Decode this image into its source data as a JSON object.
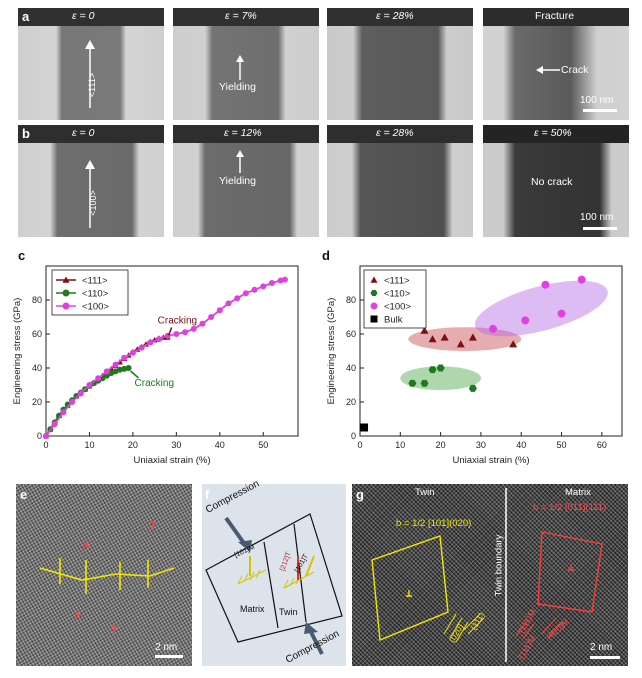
{
  "panel_a": {
    "label": "a",
    "frames": [
      {
        "strain_label": "ε = 0",
        "note": "<111>"
      },
      {
        "strain_label": "ε = 7%",
        "note": "Yielding"
      },
      {
        "strain_label": "ε = 28%",
        "note": ""
      },
      {
        "strain_label": "Fracture",
        "note": "Crack"
      }
    ],
    "scale_bar": "100 nm"
  },
  "panel_b": {
    "label": "b",
    "frames": [
      {
        "strain_label": "ε = 0",
        "note": "<100>"
      },
      {
        "strain_label": "ε = 12%",
        "note": "Yielding"
      },
      {
        "strain_label": "ε = 28%",
        "note": ""
      },
      {
        "strain_label": "ε = 50%",
        "note": "No crack"
      }
    ],
    "scale_bar": "100 nm"
  },
  "colors": {
    "s111": "#7b1113",
    "s110": "#1f7a1f",
    "s100": "#e040e0",
    "bulk": "#000000"
  },
  "chart_data": [
    {
      "panel": "c",
      "type": "line",
      "xlabel": "Uniaxial strain (%)",
      "ylabel": "Engineering stress (GPa)",
      "xlim": [
        0,
        58
      ],
      "ylim": [
        0,
        100
      ],
      "xticks": [
        0,
        10,
        20,
        30,
        40,
        50
      ],
      "yticks": [
        0,
        20,
        40,
        60,
        80
      ],
      "legend_position": "top-left",
      "annotations": [
        {
          "text": "Cracking",
          "series": "<111>"
        },
        {
          "text": "Cracking",
          "series": "<110>"
        }
      ],
      "series": [
        {
          "name": "<111>",
          "marker": "triangle",
          "color": "#7b1113",
          "x": [
            0,
            1,
            2,
            3,
            4,
            5,
            6,
            7,
            8,
            9,
            10,
            11,
            12,
            13,
            14,
            15,
            16,
            17,
            18,
            19,
            20,
            21,
            22,
            23,
            24,
            25,
            26,
            27,
            28
          ],
          "y": [
            0,
            4,
            8,
            12,
            15,
            18,
            21,
            23.5,
            25.5,
            27.5,
            29.5,
            31.5,
            33.5,
            35.5,
            37.5,
            39.5,
            41.5,
            43.5,
            45.5,
            47.5,
            49.5,
            51,
            52.5,
            54,
            55.5,
            56.5,
            57.5,
            58,
            58
          ]
        },
        {
          "name": "<110>",
          "marker": "circle",
          "color": "#1f7a1f",
          "x": [
            0,
            1,
            2,
            3,
            4,
            5,
            6,
            7,
            8,
            9,
            10,
            11,
            12,
            13,
            14,
            15,
            16,
            17,
            18,
            19
          ],
          "y": [
            0,
            4,
            8,
            12,
            15.5,
            18.5,
            21,
            23.5,
            25.5,
            27.5,
            29.5,
            31,
            32.5,
            34,
            35.5,
            37,
            38,
            39,
            39.5,
            40
          ]
        },
        {
          "name": "<100>",
          "marker": "circle",
          "color": "#e040e0",
          "x": [
            0,
            2,
            4,
            6,
            8,
            10,
            12,
            14,
            16,
            18,
            20,
            22,
            24,
            26,
            28,
            30,
            32,
            34,
            36,
            38,
            40,
            42,
            44,
            46,
            48,
            50,
            52,
            54,
            55
          ],
          "y": [
            0,
            7,
            14,
            20,
            25,
            30,
            34,
            38,
            42,
            46,
            49,
            52,
            55,
            57,
            59,
            60,
            61,
            63,
            66,
            70,
            74,
            78,
            81,
            84,
            86,
            88,
            90,
            91.5,
            92
          ]
        }
      ]
    },
    {
      "panel": "d",
      "type": "scatter",
      "xlabel": "Uniaxial strain (%)",
      "ylabel": "Engineering stress (GPa)",
      "xlim": [
        0,
        65
      ],
      "ylim": [
        0,
        100
      ],
      "xticks": [
        0,
        10,
        20,
        30,
        40,
        50,
        60
      ],
      "yticks": [
        0,
        20,
        40,
        60,
        80
      ],
      "legend_position": "top-left",
      "series": [
        {
          "name": "<111>",
          "marker": "triangle",
          "color": "#7b1113",
          "x": [
            16,
            18,
            21,
            25,
            28,
            38
          ],
          "y": [
            62,
            57,
            58,
            54,
            58,
            54
          ]
        },
        {
          "name": "<110>",
          "marker": "hexagon",
          "color": "#1f7a1f",
          "x": [
            13,
            16,
            18,
            20,
            28
          ],
          "y": [
            31,
            31,
            39,
            40,
            28
          ]
        },
        {
          "name": "<100>",
          "marker": "circle",
          "color": "#e040e0",
          "x": [
            33,
            41,
            46,
            50,
            55
          ],
          "y": [
            63,
            68,
            89,
            72,
            92
          ]
        },
        {
          "name": "Bulk",
          "marker": "square",
          "color": "#000000",
          "x": [
            1
          ],
          "y": [
            5
          ]
        }
      ]
    }
  ],
  "panel_e": {
    "label": "e",
    "scale_bar": "2 nm"
  },
  "panel_f": {
    "label": "f",
    "compression_top": "Compression",
    "compression_bottom": "Compression",
    "matrix": "Matrix",
    "twin": "Twin",
    "vec_matrix": "[101]M",
    "vec_twin1": "[212]T",
    "vec_twin2": "[101]T"
  },
  "panel_g": {
    "label": "g",
    "twin": "Twin",
    "matrix": "Matrix",
    "twin_boundary": "Twin boundary",
    "burgers_twin": "b = 1/2 [101](020)",
    "burgers_matrix": "b = 1/2 [011](111)",
    "plane_020": "(020)",
    "plane_111": "(111)",
    "plane_m111": "(111)M",
    "plane_m020": "(020)M",
    "plane_m111b": "(111)M",
    "scale_bar": "2 nm"
  }
}
